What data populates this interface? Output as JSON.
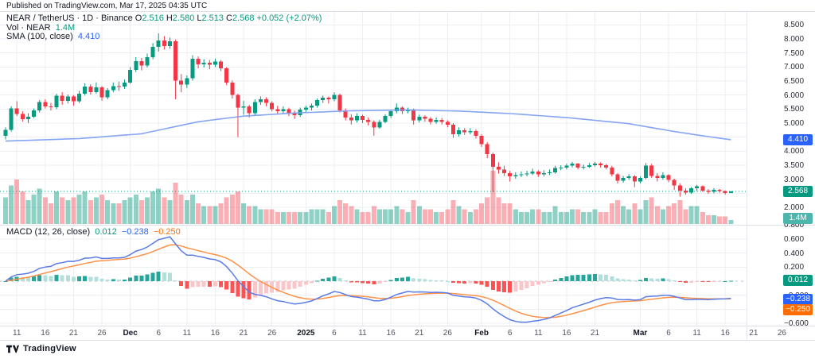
{
  "published_bar": {
    "text": "Published on TradingView.com, Mar 17, 2025 04:35 UTC"
  },
  "legend": {
    "symbol": "NEAR / TetherUS · 1D · Binance",
    "o_label": "O",
    "o": "2.516",
    "h_label": "H",
    "h": "2.580",
    "l_label": "L",
    "l": "2.513",
    "c_label": "C",
    "c": "2.568",
    "change": "+0.052 (+2.07%)",
    "vol_label": "Vol · NEAR",
    "vol_value": "1.4M",
    "sma_label": "SMA (100, close)",
    "sma_value": "4.410",
    "macd_label": "MACD (12, 26, close)",
    "macd_hist_value": "0.012",
    "macd_value": "−0.238",
    "macd_signal_value": "−0.250"
  },
  "badges": {
    "sma": "4.410",
    "close": "2.568",
    "volume": "1.4M",
    "macd_hist": "0.012",
    "macd": "−0.238",
    "macd_signal": "−0.250"
  },
  "footer": {
    "brand": "TradingView"
  },
  "colors": {
    "up": "#089981",
    "down": "#f23645",
    "vol_up": "rgba(8,153,129,0.45)",
    "vol_down": "rgba(242,54,69,0.40)",
    "sma_line": "#7e9ff2",
    "macd_line": "#5b7be6",
    "signal_line": "#ff9248",
    "hist_pos_strong": "#26a69a",
    "hist_pos_weak": "#b2dfdb",
    "hist_neg_strong": "#ff5252",
    "hist_neg_weak": "#fbc6c9",
    "grid": "#edeff3",
    "close_line": "#089981",
    "zero_line": "#b2b5be"
  },
  "chart_data": {
    "type": "candlestick",
    "title": "NEAR / TetherUS · 1D · Binance",
    "panes": [
      "price + volume + SMA(100)",
      "MACD(12, 26, close)"
    ],
    "legend_note": "grid on, two panes, right price scale",
    "price_axis": {
      "ticks": [
        {
          "v": 8.5,
          "label": "8.500"
        },
        {
          "v": 8.0,
          "label": "8.000"
        },
        {
          "v": 7.5,
          "label": "7.500"
        },
        {
          "v": 7.0,
          "label": "7.000"
        },
        {
          "v": 6.5,
          "label": "6.500"
        },
        {
          "v": 6.0,
          "label": "6.000"
        },
        {
          "v": 5.5,
          "label": "5.500"
        },
        {
          "v": 5.0,
          "label": "5.000"
        },
        {
          "v": 4.5,
          "label": "4.500"
        },
        {
          "v": 4.0,
          "label": "4.000"
        },
        {
          "v": 3.5,
          "label": "3.500"
        },
        {
          "v": 3.0,
          "label": "3.000"
        },
        {
          "v": 2.5,
          "label": "2.500"
        },
        {
          "v": 2.0,
          "label": "2.000"
        }
      ]
    },
    "macd_axis": {
      "ticks": [
        {
          "v": 0.8,
          "label": "0.800"
        },
        {
          "v": 0.6,
          "label": "0.600"
        },
        {
          "v": 0.4,
          "label": "0.400"
        },
        {
          "v": 0.2,
          "label": "0.200"
        },
        {
          "v": -0.2,
          "label": "−0.200"
        },
        {
          "v": -0.4,
          "label": "−0.400"
        },
        {
          "v": -0.6,
          "label": "−0.600"
        }
      ]
    },
    "x_axis": {
      "ticks": [
        {
          "i": 2,
          "label": "11"
        },
        {
          "i": 7,
          "label": "16"
        },
        {
          "i": 12,
          "label": "21"
        },
        {
          "i": 17,
          "label": "26"
        },
        {
          "i": 22,
          "label": "Dec",
          "major": true
        },
        {
          "i": 27,
          "label": "6"
        },
        {
          "i": 32,
          "label": "11"
        },
        {
          "i": 37,
          "label": "16"
        },
        {
          "i": 42,
          "label": "21"
        },
        {
          "i": 47,
          "label": "26"
        },
        {
          "i": 53,
          "label": "2025",
          "major": true
        },
        {
          "i": 58,
          "label": "6"
        },
        {
          "i": 63,
          "label": "11"
        },
        {
          "i": 68,
          "label": "16"
        },
        {
          "i": 73,
          "label": "21"
        },
        {
          "i": 78,
          "label": "26"
        },
        {
          "i": 84,
          "label": "Feb",
          "major": true
        },
        {
          "i": 89,
          "label": "6"
        },
        {
          "i": 94,
          "label": "11"
        },
        {
          "i": 99,
          "label": "16"
        },
        {
          "i": 104,
          "label": "21"
        },
        {
          "i": 112,
          "label": "Mar",
          "major": true
        },
        {
          "i": 117,
          "label": "6"
        },
        {
          "i": 122,
          "label": "11"
        },
        {
          "i": 127,
          "label": "16"
        },
        {
          "i": 132,
          "label": "21"
        },
        {
          "i": 137,
          "label": "26"
        }
      ]
    },
    "candles_format": [
      "date",
      "open",
      "high",
      "low",
      "close",
      "volume_millions"
    ],
    "candles": [
      [
        "Nov 9",
        4.55,
        4.85,
        4.42,
        4.76,
        9
      ],
      [
        "Nov 10",
        4.76,
        5.6,
        4.7,
        5.53,
        13
      ],
      [
        "Nov 11",
        5.53,
        5.78,
        5.25,
        5.33,
        15
      ],
      [
        "Nov 12",
        5.33,
        5.42,
        5.05,
        5.14,
        11
      ],
      [
        "Nov 13",
        5.14,
        5.35,
        5.0,
        5.22,
        8
      ],
      [
        "Nov 14",
        5.22,
        5.52,
        5.18,
        5.45,
        10
      ],
      [
        "Nov 15",
        5.45,
        5.82,
        5.38,
        5.75,
        12
      ],
      [
        "Nov 16",
        5.75,
        5.85,
        5.52,
        5.6,
        9
      ],
      [
        "Nov 17",
        5.6,
        5.72,
        5.45,
        5.56,
        7
      ],
      [
        "Nov 18",
        5.56,
        6.05,
        5.5,
        5.98,
        11
      ],
      [
        "Nov 19",
        5.98,
        6.1,
        5.65,
        5.8,
        9
      ],
      [
        "Nov 20",
        5.8,
        6.02,
        5.7,
        5.95,
        8
      ],
      [
        "Nov 21",
        5.95,
        6.0,
        5.62,
        5.78,
        9
      ],
      [
        "Nov 22",
        5.78,
        6.15,
        5.72,
        6.05,
        10
      ],
      [
        "Nov 23",
        6.05,
        6.42,
        5.98,
        6.3,
        11
      ],
      [
        "Nov 24",
        6.3,
        6.38,
        6.02,
        6.1,
        8
      ],
      [
        "Nov 25",
        6.1,
        6.45,
        6.05,
        6.28,
        9
      ],
      [
        "Nov 26",
        6.28,
        6.32,
        5.8,
        5.92,
        10
      ],
      [
        "Nov 27",
        5.92,
        6.25,
        5.85,
        6.18,
        8
      ],
      [
        "Nov 28",
        6.18,
        6.45,
        6.1,
        6.32,
        7
      ],
      [
        "Nov 29",
        6.32,
        6.48,
        6.15,
        6.3,
        7
      ],
      [
        "Nov 30",
        6.3,
        6.55,
        6.22,
        6.45,
        8
      ],
      [
        "Dec 1",
        6.45,
        7.0,
        6.4,
        6.9,
        9
      ],
      [
        "Dec 2",
        6.9,
        7.35,
        6.82,
        7.21,
        10
      ],
      [
        "Dec 3",
        7.21,
        7.32,
        6.88,
        7.05,
        8
      ],
      [
        "Dec 4",
        7.05,
        7.48,
        6.98,
        7.35,
        9
      ],
      [
        "Dec 5",
        7.35,
        7.85,
        7.28,
        7.72,
        11
      ],
      [
        "Dec 6",
        7.72,
        8.2,
        7.55,
        7.95,
        12
      ],
      [
        "Dec 7",
        7.95,
        8.1,
        7.62,
        7.75,
        9
      ],
      [
        "Dec 8",
        7.75,
        8.05,
        7.65,
        7.92,
        8
      ],
      [
        "Dec 9",
        7.92,
        7.98,
        5.85,
        6.52,
        14
      ],
      [
        "Dec 10",
        6.52,
        6.75,
        6.1,
        6.38,
        10
      ],
      [
        "Dec 11",
        6.38,
        6.7,
        6.25,
        6.6,
        8
      ],
      [
        "Dec 12",
        6.6,
        7.42,
        6.52,
        7.3,
        10
      ],
      [
        "Dec 13",
        7.3,
        7.38,
        6.95,
        7.1,
        7
      ],
      [
        "Dec 14",
        7.1,
        7.28,
        6.98,
        7.15,
        6
      ],
      [
        "Dec 15",
        7.15,
        7.25,
        6.92,
        7.08,
        6
      ],
      [
        "Dec 16",
        7.08,
        7.3,
        7.0,
        7.2,
        6
      ],
      [
        "Dec 17",
        7.2,
        7.25,
        6.85,
        6.95,
        7
      ],
      [
        "Dec 18",
        6.95,
        7.0,
        6.35,
        6.45,
        9
      ],
      [
        "Dec 19",
        6.45,
        6.52,
        5.88,
        6.0,
        10
      ],
      [
        "Dec 20",
        6.0,
        6.05,
        4.5,
        5.55,
        11
      ],
      [
        "Dec 21",
        5.55,
        5.8,
        5.3,
        5.6,
        7
      ],
      [
        "Dec 22",
        5.6,
        5.65,
        5.2,
        5.35,
        6
      ],
      [
        "Dec 23",
        5.35,
        5.85,
        5.28,
        5.75,
        6
      ],
      [
        "Dec 24",
        5.75,
        5.95,
        5.65,
        5.85,
        5
      ],
      [
        "Dec 25",
        5.85,
        5.92,
        5.6,
        5.72,
        5
      ],
      [
        "Dec 26",
        5.72,
        5.78,
        5.42,
        5.5,
        5
      ],
      [
        "Dec 27",
        5.5,
        5.62,
        5.32,
        5.42,
        4
      ],
      [
        "Dec 28",
        5.42,
        5.6,
        5.35,
        5.5,
        4
      ],
      [
        "Dec 29",
        5.5,
        5.55,
        5.25,
        5.35,
        4
      ],
      [
        "Dec 30",
        5.35,
        5.45,
        5.15,
        5.28,
        4
      ],
      [
        "Dec 31",
        5.28,
        5.55,
        5.22,
        5.48,
        4
      ],
      [
        "Jan 1",
        5.48,
        5.62,
        5.4,
        5.55,
        4
      ],
      [
        "Jan 2",
        5.55,
        5.7,
        5.45,
        5.62,
        5
      ],
      [
        "Jan 3",
        5.62,
        5.88,
        5.55,
        5.82,
        5
      ],
      [
        "Jan 4",
        5.82,
        5.98,
        5.72,
        5.9,
        5
      ],
      [
        "Jan 5",
        5.9,
        5.95,
        5.7,
        5.85,
        4
      ],
      [
        "Jan 6",
        5.85,
        6.1,
        5.78,
        6.0,
        6
      ],
      [
        "Jan 7",
        6.0,
        6.05,
        5.38,
        5.45,
        8
      ],
      [
        "Jan 8",
        5.45,
        5.52,
        5.1,
        5.2,
        7
      ],
      [
        "Jan 9",
        5.2,
        5.32,
        4.95,
        5.1,
        6
      ],
      [
        "Jan 10",
        5.1,
        5.35,
        5.02,
        5.25,
        5
      ],
      [
        "Jan 11",
        5.25,
        5.3,
        5.0,
        5.12,
        4
      ],
      [
        "Jan 12",
        5.12,
        5.2,
        4.92,
        5.05,
        4
      ],
      [
        "Jan 13",
        5.05,
        5.1,
        4.55,
        4.85,
        6
      ],
      [
        "Jan 14",
        4.85,
        5.12,
        4.8,
        5.05,
        5
      ],
      [
        "Jan 15",
        5.05,
        5.32,
        5.0,
        5.25,
        5
      ],
      [
        "Jan 16",
        5.25,
        5.48,
        5.18,
        5.42,
        5
      ],
      [
        "Jan 17",
        5.42,
        5.7,
        5.35,
        5.55,
        6
      ],
      [
        "Jan 18",
        5.55,
        5.6,
        5.32,
        5.42,
        5
      ],
      [
        "Jan 19",
        5.42,
        5.55,
        5.35,
        5.48,
        4
      ],
      [
        "Jan 20",
        5.48,
        5.52,
        4.95,
        5.1,
        8
      ],
      [
        "Jan 21",
        5.1,
        5.3,
        5.02,
        5.22,
        6
      ],
      [
        "Jan 22",
        5.22,
        5.28,
        5.05,
        5.15,
        5
      ],
      [
        "Jan 23",
        5.15,
        5.22,
        4.95,
        5.05,
        5
      ],
      [
        "Jan 24",
        5.05,
        5.2,
        4.98,
        5.12,
        4
      ],
      [
        "Jan 25",
        5.12,
        5.18,
        4.95,
        5.05,
        4
      ],
      [
        "Jan 26",
        5.05,
        5.1,
        4.85,
        4.95,
        5
      ],
      [
        "Jan 27",
        4.95,
        5.0,
        4.48,
        4.6,
        8
      ],
      [
        "Jan 28",
        4.6,
        4.85,
        4.52,
        4.75,
        6
      ],
      [
        "Jan 29",
        4.75,
        4.82,
        4.58,
        4.68,
        5
      ],
      [
        "Jan 30",
        4.68,
        4.82,
        4.6,
        4.72,
        4
      ],
      [
        "Jan 31",
        4.72,
        4.78,
        4.45,
        4.55,
        5
      ],
      [
        "Feb 1",
        4.55,
        4.6,
        4.15,
        4.25,
        7
      ],
      [
        "Feb 2",
        4.25,
        4.32,
        3.75,
        3.9,
        9
      ],
      [
        "Feb 3",
        3.9,
        3.95,
        2.55,
        3.45,
        18
      ],
      [
        "Feb 4",
        3.45,
        3.6,
        3.2,
        3.35,
        9
      ],
      [
        "Feb 5",
        3.35,
        3.48,
        3.12,
        3.22,
        7
      ],
      [
        "Feb 6",
        3.22,
        3.3,
        2.92,
        3.1,
        7
      ],
      [
        "Feb 7",
        3.1,
        3.25,
        3.02,
        3.15,
        5
      ],
      [
        "Feb 8",
        3.15,
        3.28,
        3.08,
        3.18,
        4
      ],
      [
        "Feb 9",
        3.18,
        3.3,
        3.1,
        3.2,
        4
      ],
      [
        "Feb 10",
        3.2,
        3.38,
        3.15,
        3.28,
        5
      ],
      [
        "Feb 11",
        3.28,
        3.32,
        3.08,
        3.18,
        5
      ],
      [
        "Feb 12",
        3.18,
        3.32,
        3.1,
        3.22,
        4
      ],
      [
        "Feb 13",
        3.22,
        3.35,
        3.15,
        3.25,
        4
      ],
      [
        "Feb 14",
        3.25,
        3.48,
        3.2,
        3.4,
        6
      ],
      [
        "Feb 15",
        3.4,
        3.5,
        3.32,
        3.42,
        4
      ],
      [
        "Feb 16",
        3.42,
        3.55,
        3.35,
        3.48,
        4
      ],
      [
        "Feb 17",
        3.48,
        3.62,
        3.42,
        3.55,
        5
      ],
      [
        "Feb 18",
        3.55,
        3.58,
        3.35,
        3.42,
        5
      ],
      [
        "Feb 19",
        3.42,
        3.52,
        3.35,
        3.45,
        4
      ],
      [
        "Feb 20",
        3.45,
        3.58,
        3.4,
        3.5,
        4
      ],
      [
        "Feb 21",
        3.5,
        3.62,
        3.45,
        3.55,
        5
      ],
      [
        "Feb 22",
        3.55,
        3.6,
        3.42,
        3.5,
        4
      ],
      [
        "Feb 23",
        3.5,
        3.55,
        3.35,
        3.42,
        4
      ],
      [
        "Feb 24",
        3.42,
        3.48,
        3.1,
        3.18,
        7
      ],
      [
        "Feb 25",
        3.18,
        3.22,
        2.85,
        2.95,
        8
      ],
      [
        "Feb 26",
        2.95,
        3.12,
        2.88,
        3.05,
        6
      ],
      [
        "Feb 27",
        3.05,
        3.18,
        2.98,
        3.1,
        5
      ],
      [
        "Feb 28",
        3.1,
        3.15,
        2.72,
        2.92,
        7
      ],
      [
        "Mar 1",
        2.92,
        3.1,
        2.85,
        3.05,
        5
      ],
      [
        "Mar 2",
        3.05,
        3.58,
        3.0,
        3.48,
        8
      ],
      [
        "Mar 3",
        3.48,
        3.55,
        3.05,
        3.12,
        9
      ],
      [
        "Mar 4",
        3.12,
        3.22,
        2.92,
        3.05,
        6
      ],
      [
        "Mar 5",
        3.05,
        3.25,
        2.98,
        3.15,
        5
      ],
      [
        "Mar 6",
        3.15,
        3.18,
        2.9,
        2.98,
        6
      ],
      [
        "Mar 7",
        2.98,
        3.02,
        2.62,
        2.78,
        7
      ],
      [
        "Mar 8",
        2.78,
        2.85,
        2.38,
        2.6,
        8
      ],
      [
        "Mar 9",
        2.6,
        2.68,
        2.45,
        2.52,
        5
      ],
      [
        "Mar 10",
        2.52,
        2.72,
        2.48,
        2.68,
        6
      ],
      [
        "Mar 11",
        2.68,
        2.8,
        2.58,
        2.75,
        6
      ],
      [
        "Mar 12",
        2.75,
        2.78,
        2.55,
        2.6,
        4
      ],
      [
        "Mar 13",
        2.6,
        2.65,
        2.48,
        2.55,
        3
      ],
      [
        "Mar 14",
        2.55,
        2.68,
        2.5,
        2.62,
        3
      ],
      [
        "Mar 15",
        2.62,
        2.65,
        2.52,
        2.58,
        2.5
      ],
      [
        "Mar 16",
        2.58,
        2.6,
        2.45,
        2.516,
        2.5
      ],
      [
        "Mar 17",
        2.516,
        2.58,
        2.513,
        2.568,
        1.4
      ]
    ],
    "sma100_points": [
      [
        0,
        4.36
      ],
      [
        13,
        4.45
      ],
      [
        24,
        4.62
      ],
      [
        34,
        5.05
      ],
      [
        42,
        5.25
      ],
      [
        51,
        5.36
      ],
      [
        61,
        5.44
      ],
      [
        71,
        5.47
      ],
      [
        80,
        5.43
      ],
      [
        90,
        5.33
      ],
      [
        100,
        5.18
      ],
      [
        110,
        4.98
      ],
      [
        118,
        4.7
      ],
      [
        124,
        4.52
      ],
      [
        128,
        4.41
      ]
    ],
    "last_bar": {
      "open": 2.516,
      "high": 2.58,
      "low": 2.513,
      "close": 2.568,
      "volume": "1.4M",
      "change": "+0.052 (+2.07%)"
    },
    "indicators": {
      "sma100_last": 4.41,
      "macd_last": -0.238,
      "signal_last": -0.25,
      "hist_last": 0.012
    }
  }
}
